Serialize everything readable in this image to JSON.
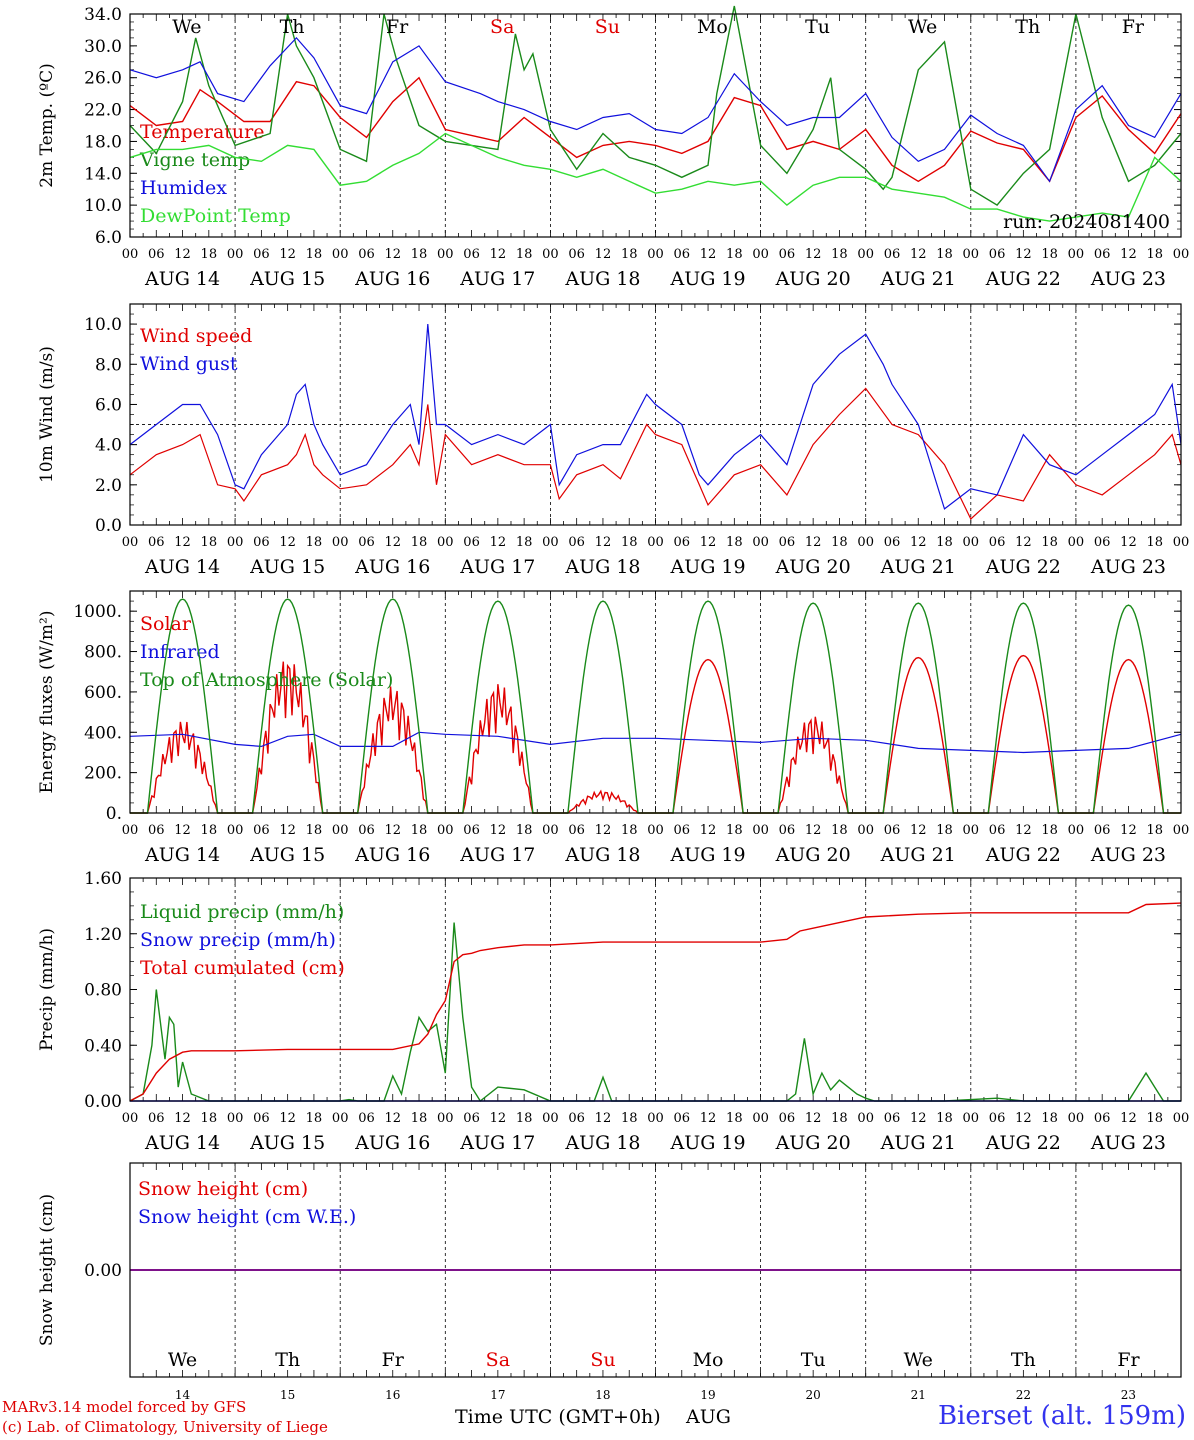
{
  "colors": {
    "red": "#e00000",
    "darkgreen": "#1a8a1a",
    "blue": "#1010dd",
    "lightgreen": "#33dd33",
    "purple": "#7f007f",
    "black": "#000000"
  },
  "time_axis": {
    "hours": [
      "00",
      "06",
      "12",
      "18"
    ],
    "dates": [
      "AUG 14",
      "AUG 15",
      "AUG 16",
      "AUG 17",
      "AUG 18",
      "AUG 19",
      "AUG 20",
      "AUG 21",
      "AUG 22",
      "AUG 23"
    ],
    "weekdays": [
      {
        "label": "We",
        "color": "#000000"
      },
      {
        "label": "Th",
        "color": "#000000"
      },
      {
        "label": "Fr",
        "color": "#000000"
      },
      {
        "label": "Sa",
        "color": "#e00000"
      },
      {
        "label": "Su",
        "color": "#e00000"
      },
      {
        "label": "Mo",
        "color": "#000000"
      },
      {
        "label": "Tu",
        "color": "#000000"
      },
      {
        "label": "We",
        "color": "#000000"
      },
      {
        "label": "Th",
        "color": "#000000"
      },
      {
        "label": "Fr",
        "color": "#000000"
      }
    ],
    "day_numbers": [
      "14",
      "15",
      "16",
      "17",
      "18",
      "19",
      "20",
      "21",
      "22",
      "23"
    ],
    "xlabel": "Time UTC (GMT+0h)",
    "month": "AUG"
  },
  "chart_data": [
    {
      "type": "line",
      "ylabel": "2m Temp. (ºC)",
      "ylim": [
        6,
        34
      ],
      "yticks": [
        "6.0",
        "10.0",
        "14.0",
        "18.0",
        "22.0",
        "26.0",
        "30.0",
        "34.0"
      ],
      "annotation": "run: 2024081400",
      "x_unit": "hours since AUG 14 00 UTC",
      "series": [
        {
          "name": "Temperature",
          "color": "red",
          "x": [
            0,
            6,
            12,
            16,
            20,
            26,
            32,
            38,
            42,
            48,
            54,
            60,
            66,
            72,
            80,
            84,
            90,
            96,
            102,
            108,
            114,
            120,
            126,
            132,
            138,
            144,
            150,
            156,
            162,
            168,
            174,
            180,
            186,
            192,
            198,
            204,
            210,
            216,
            222,
            228,
            234,
            240
          ],
          "y": [
            22.5,
            20,
            20.5,
            24.5,
            23,
            20.5,
            20.5,
            25.5,
            25,
            21,
            18.5,
            23,
            26,
            19.5,
            18.5,
            18,
            21,
            18.5,
            16,
            17.5,
            18,
            17.5,
            16.5,
            18,
            23.5,
            22.5,
            17,
            18,
            17,
            19.5,
            15,
            13,
            15,
            19.3,
            17.8,
            17,
            13,
            21,
            23.7,
            19.5,
            16.5,
            21.5
          ]
        },
        {
          "name": "Vigne temp",
          "color": "darkgreen",
          "x": [
            0,
            6,
            12,
            15,
            18,
            24,
            32,
            36,
            38,
            42,
            48,
            54,
            58,
            61,
            66,
            72,
            78,
            84,
            88,
            90,
            92,
            96,
            102,
            108,
            114,
            120,
            126,
            132,
            134,
            138,
            144,
            150,
            156,
            160,
            162,
            168,
            172,
            174,
            180,
            186,
            192,
            198,
            204,
            210,
            216,
            222,
            228,
            234,
            240
          ],
          "y": [
            20,
            16.5,
            23,
            31,
            25,
            17.5,
            19,
            34,
            30,
            26,
            17,
            15.5,
            34,
            28,
            20,
            18,
            17.5,
            17,
            31.5,
            27,
            29,
            19.5,
            14.5,
            19,
            16,
            15,
            13.5,
            15,
            24,
            35,
            17.5,
            14,
            19.5,
            26,
            17,
            14.5,
            12,
            13.5,
            27,
            30.5,
            12,
            10,
            14,
            17,
            34,
            21,
            13,
            15,
            19
          ]
        },
        {
          "name": "Humidex",
          "color": "blue",
          "x": [
            0,
            6,
            12,
            16,
            20,
            26,
            32,
            38,
            42,
            48,
            54,
            60,
            66,
            72,
            80,
            84,
            90,
            96,
            102,
            108,
            114,
            120,
            126,
            132,
            138,
            144,
            150,
            156,
            162,
            168,
            174,
            180,
            186,
            192,
            198,
            204,
            210,
            216,
            222,
            228,
            234,
            240
          ],
          "y": [
            27,
            26,
            27,
            28,
            24,
            23,
            27.5,
            31,
            28.5,
            22.5,
            21.5,
            28,
            30,
            25.5,
            24,
            23,
            22,
            20.5,
            19.5,
            21,
            21.5,
            19.5,
            19,
            21,
            26.5,
            23,
            20,
            21,
            21,
            24,
            18.5,
            15.5,
            17,
            21.3,
            19,
            17.5,
            13,
            22,
            25,
            20,
            18.5,
            24
          ]
        },
        {
          "name": "DewPoint Temp",
          "color": "lightgreen",
          "x": [
            0,
            6,
            12,
            18,
            24,
            30,
            36,
            42,
            48,
            54,
            60,
            66,
            72,
            80,
            84,
            90,
            96,
            102,
            108,
            114,
            120,
            126,
            132,
            138,
            144,
            150,
            156,
            162,
            168,
            174,
            180,
            186,
            192,
            198,
            204,
            210,
            216,
            222,
            228,
            234,
            240
          ],
          "y": [
            16,
            17,
            17,
            17.5,
            16,
            15.5,
            17.5,
            17,
            12.5,
            13,
            15,
            16.5,
            19,
            17,
            16,
            15,
            14.5,
            13.5,
            14.5,
            13,
            11.5,
            12,
            13,
            12.5,
            13,
            10,
            12.5,
            13.5,
            13.5,
            12,
            11.5,
            11,
            9.5,
            9.5,
            8.5,
            8,
            8.5,
            9,
            8.5,
            16,
            13
          ]
        }
      ]
    },
    {
      "type": "line",
      "ylabel": "10m Wind (m/s)",
      "ylim": [
        0,
        11
      ],
      "yticks": [
        "0.0",
        "2.0",
        "4.0",
        "6.0",
        "8.0",
        "10.0"
      ],
      "reference_line": 5,
      "x_unit": "hours since AUG 14 00 UTC",
      "series": [
        {
          "name": "Wind speed",
          "color": "red",
          "x": [
            0,
            6,
            12,
            16,
            20,
            24,
            26,
            30,
            36,
            38,
            40,
            42,
            44,
            48,
            54,
            60,
            64,
            66,
            68,
            70,
            72,
            78,
            84,
            90,
            96,
            98,
            102,
            108,
            112,
            118,
            120,
            126,
            130,
            132,
            138,
            144,
            150,
            156,
            162,
            168,
            174,
            180,
            186,
            192,
            198,
            204,
            210,
            216,
            222,
            228,
            234,
            238,
            240
          ],
          "y": [
            2.5,
            3.5,
            4,
            4.5,
            2,
            1.8,
            1.2,
            2.5,
            3,
            3.5,
            4.5,
            3,
            2.5,
            1.8,
            2,
            3,
            4,
            3,
            6,
            2,
            4.5,
            3,
            3.5,
            3,
            3,
            1.3,
            2.5,
            3,
            2.3,
            5,
            4.5,
            4,
            2,
            1,
            2.5,
            3,
            1.5,
            4,
            5.5,
            6.8,
            5,
            4.5,
            3,
            0.3,
            1.5,
            1.2,
            3.5,
            2,
            1.5,
            2.5,
            3.5,
            4.5,
            3
          ]
        },
        {
          "name": "Wind gust",
          "color": "blue",
          "x": [
            0,
            6,
            12,
            16,
            20,
            24,
            26,
            30,
            36,
            38,
            40,
            42,
            44,
            48,
            54,
            60,
            64,
            66,
            68,
            70,
            72,
            78,
            84,
            90,
            96,
            98,
            102,
            108,
            112,
            118,
            120,
            126,
            130,
            132,
            138,
            144,
            150,
            156,
            162,
            168,
            172,
            174,
            180,
            186,
            192,
            198,
            204,
            210,
            216,
            222,
            228,
            234,
            238,
            240
          ],
          "y": [
            4,
            5,
            6,
            6,
            4.5,
            2,
            1.8,
            3.5,
            5,
            6.5,
            7,
            5,
            4,
            2.5,
            3,
            5,
            6,
            4,
            10,
            5,
            5,
            4,
            4.5,
            4,
            5,
            2,
            3.5,
            4,
            4,
            6.5,
            6,
            5,
            2.5,
            2,
            3.5,
            4.5,
            3,
            7,
            8.5,
            9.5,
            8,
            7,
            5,
            0.8,
            1.8,
            1.5,
            4.5,
            3,
            2.5,
            3.5,
            4.5,
            5.5,
            7,
            4
          ]
        }
      ]
    },
    {
      "type": "line",
      "ylabel": "Energy fluxes (W/m²)",
      "ylim": [
        0,
        1100
      ],
      "yticks": [
        "0.",
        "200.",
        "400.",
        "600.",
        "800.",
        "1000."
      ],
      "x_unit": "hours since AUG 14 00 UTC",
      "series": [
        {
          "name": "Solar",
          "color": "red",
          "peak_hour": 12,
          "daily_peaks": [
            460,
            780,
            630,
            650,
            110,
            760,
            490,
            770,
            780,
            760
          ],
          "irregular_days": [
            true,
            true,
            true,
            true,
            true,
            false,
            true,
            false,
            false,
            false
          ]
        },
        {
          "name": "Infrared",
          "color": "blue",
          "x": [
            0,
            12,
            24,
            30,
            36,
            42,
            48,
            60,
            66,
            72,
            84,
            96,
            108,
            120,
            132,
            144,
            156,
            168,
            180,
            192,
            204,
            216,
            228,
            240
          ],
          "y": [
            380,
            390,
            340,
            330,
            380,
            390,
            330,
            330,
            400,
            390,
            380,
            340,
            370,
            370,
            360,
            350,
            370,
            360,
            320,
            310,
            300,
            310,
            320,
            390
          ]
        },
        {
          "name": "Top of Atmosphere (Solar)",
          "color": "darkgreen",
          "peak_hour": 12,
          "daily_peaks": [
            1060,
            1060,
            1060,
            1050,
            1050,
            1050,
            1040,
            1040,
            1040,
            1030
          ]
        }
      ]
    },
    {
      "type": "line",
      "ylabel": "Precip (mm/h)",
      "ylim": [
        0,
        1.6
      ],
      "yticks": [
        "0.00",
        "0.40",
        "0.80",
        "1.20",
        "1.60"
      ],
      "x_unit": "hours since AUG 14 00 UTC",
      "series": [
        {
          "name": "Liquid precip (mm/h)",
          "color": "darkgreen",
          "x": [
            0,
            3,
            5,
            6,
            8,
            9,
            10,
            11,
            12,
            14,
            18,
            24,
            42,
            48,
            50,
            52,
            58,
            60,
            62,
            64,
            66,
            68,
            70,
            72,
            74,
            76,
            78,
            80,
            84,
            90,
            96,
            106,
            108,
            110,
            120,
            150,
            152,
            154,
            156,
            158,
            160,
            162,
            166,
            168,
            170,
            174,
            186,
            198,
            204,
            222,
            228,
            230,
            232,
            234,
            236,
            240
          ],
          "y": [
            0,
            0.05,
            0.4,
            0.8,
            0.3,
            0.6,
            0.55,
            0.1,
            0.28,
            0.05,
            0,
            0,
            0,
            0,
            0.01,
            0,
            0,
            0.18,
            0.05,
            0.35,
            0.6,
            0.5,
            0.55,
            0.2,
            1.28,
            0.6,
            0.1,
            0,
            0.1,
            0.08,
            0,
            0,
            0.17,
            0,
            0,
            0,
            0.05,
            0.45,
            0.05,
            0.2,
            0.08,
            0.15,
            0.05,
            0.02,
            0,
            0,
            0,
            0.02,
            0,
            0,
            0,
            0.1,
            0.2,
            0.1,
            0,
            0
          ]
        },
        {
          "name": "Snow precip (mm/h)",
          "color": "blue",
          "x": [
            0,
            240
          ],
          "y": [
            0,
            0
          ]
        },
        {
          "name": "Total cumulated (cm)",
          "color": "red",
          "x": [
            0,
            3,
            6,
            9,
            12,
            14,
            18,
            24,
            36,
            42,
            48,
            60,
            66,
            68,
            70,
            72,
            74,
            76,
            78,
            80,
            84,
            90,
            96,
            108,
            120,
            132,
            144,
            150,
            153,
            156,
            162,
            168,
            180,
            192,
            204,
            216,
            228,
            232,
            240
          ],
          "y": [
            0,
            0.05,
            0.2,
            0.3,
            0.35,
            0.36,
            0.36,
            0.36,
            0.37,
            0.37,
            0.37,
            0.37,
            0.41,
            0.48,
            0.62,
            0.72,
            1.0,
            1.05,
            1.06,
            1.08,
            1.1,
            1.12,
            1.12,
            1.14,
            1.14,
            1.14,
            1.14,
            1.16,
            1.22,
            1.24,
            1.28,
            1.32,
            1.34,
            1.35,
            1.35,
            1.35,
            1.35,
            1.41,
            1.42
          ]
        }
      ]
    },
    {
      "type": "line",
      "ylabel": "Snow height (cm)",
      "yticks": [
        "0.00"
      ],
      "x_unit": "hours since AUG 14 00 UTC",
      "series": [
        {
          "name": "Snow height (cm)",
          "color": "red",
          "x": [
            0,
            240
          ],
          "y": [
            0,
            0
          ]
        },
        {
          "name": "Snow height (cm W.E.)",
          "color": "blue",
          "x": [
            0,
            240
          ],
          "y": [
            0,
            0
          ]
        }
      ]
    }
  ],
  "footer": {
    "credit_line1": "MARv3.14 model forced by GFS",
    "credit_line2": "(c) Lab. of Climatology, University of Liege",
    "station": "Bierset (alt. 159m)"
  }
}
